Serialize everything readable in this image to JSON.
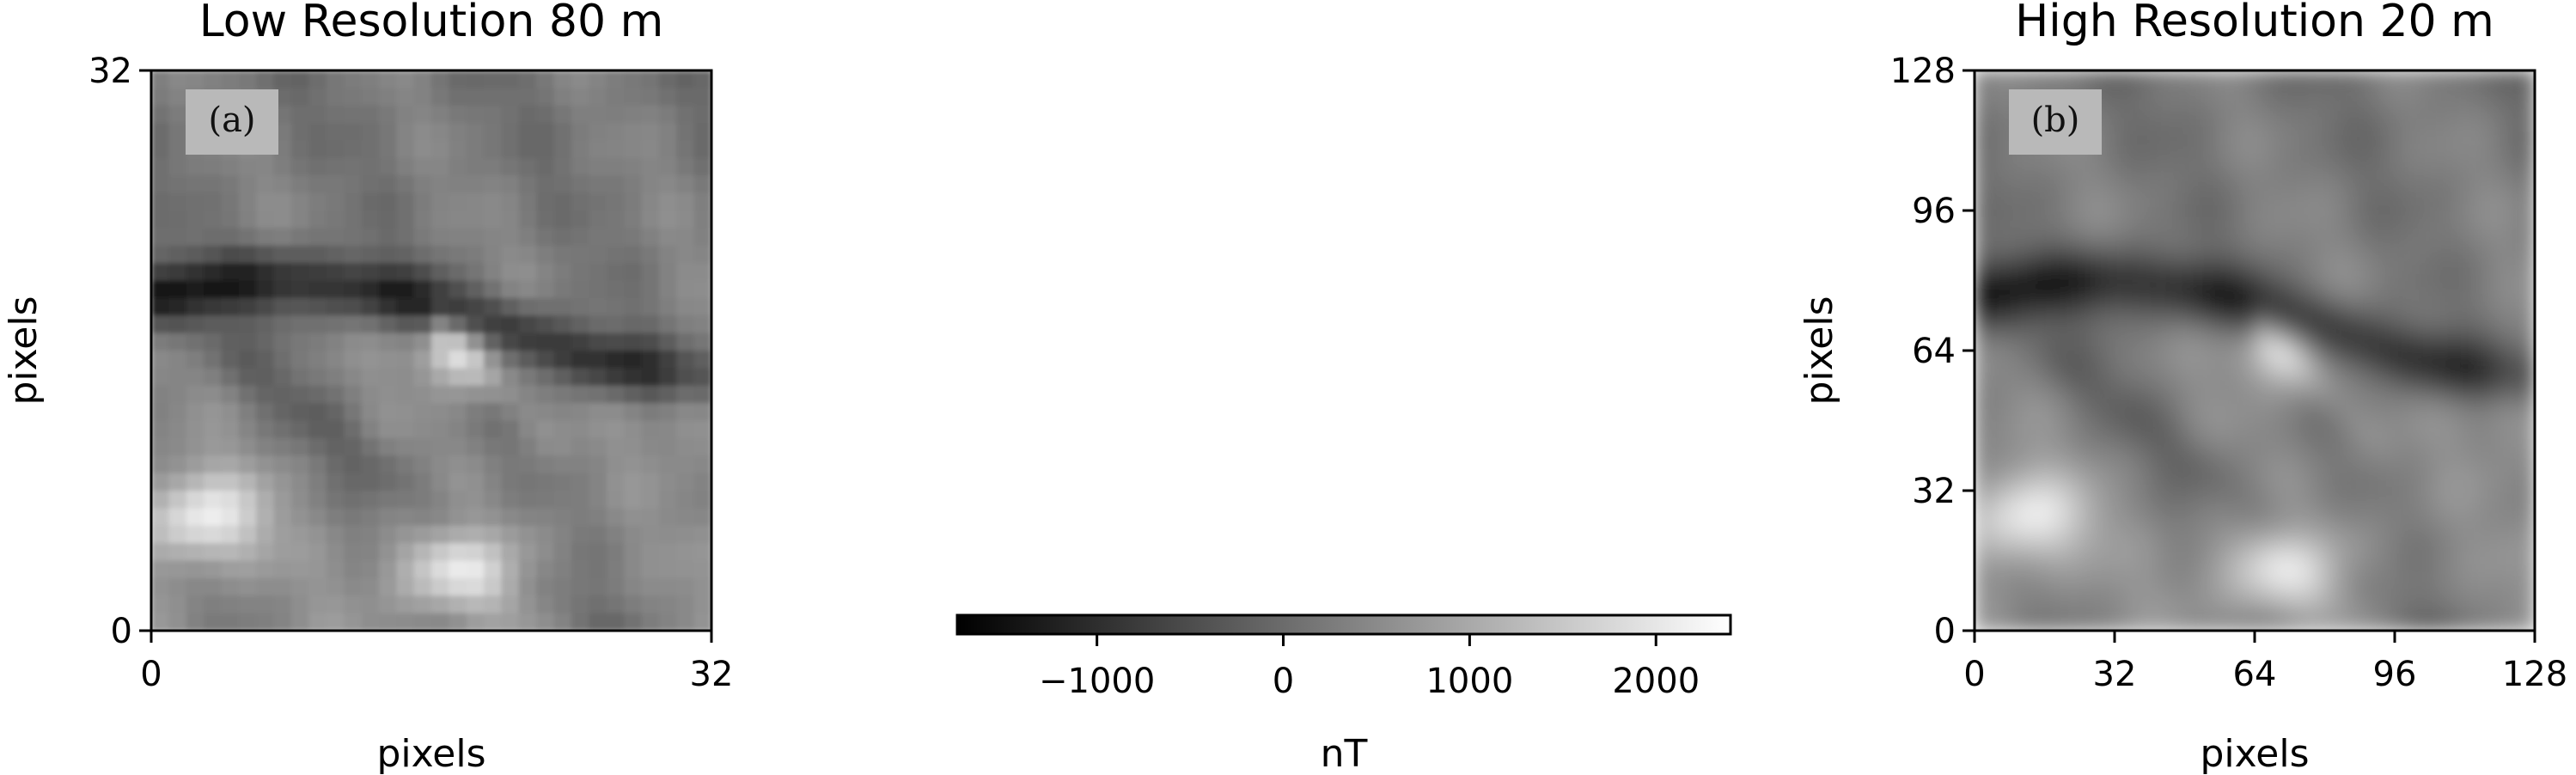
{
  "chart_data": [
    {
      "type": "heatmap",
      "title": "Low Resolution 80 m",
      "xlabel": "pixels",
      "ylabel": "pixels",
      "xlim": [
        0,
        32
      ],
      "ylim": [
        0,
        32
      ],
      "xticks": [
        0,
        32
      ],
      "yticks": [
        0,
        32
      ],
      "grid_size": 32,
      "panel_label": "(a)",
      "colormap": "gray"
    },
    {
      "type": "heatmap",
      "title": "High Resolution 20 m",
      "xlabel": "pixels",
      "ylabel": "pixels",
      "xlim": [
        0,
        128
      ],
      "ylim": [
        0,
        128
      ],
      "xticks": [
        0,
        32,
        64,
        96,
        128
      ],
      "yticks": [
        0,
        32,
        64,
        96,
        128
      ],
      "grid_size": 128,
      "panel_label": "(b)",
      "colormap": "gray"
    }
  ],
  "colorbar": {
    "label": "nT",
    "range": [
      -1750,
      2400
    ],
    "ticks": [
      -1000,
      0,
      1000,
      2000
    ],
    "tick_labels": [
      "−1000",
      "0",
      "1000",
      "2000"
    ],
    "colors": [
      "#000000",
      "#ffffff"
    ]
  }
}
